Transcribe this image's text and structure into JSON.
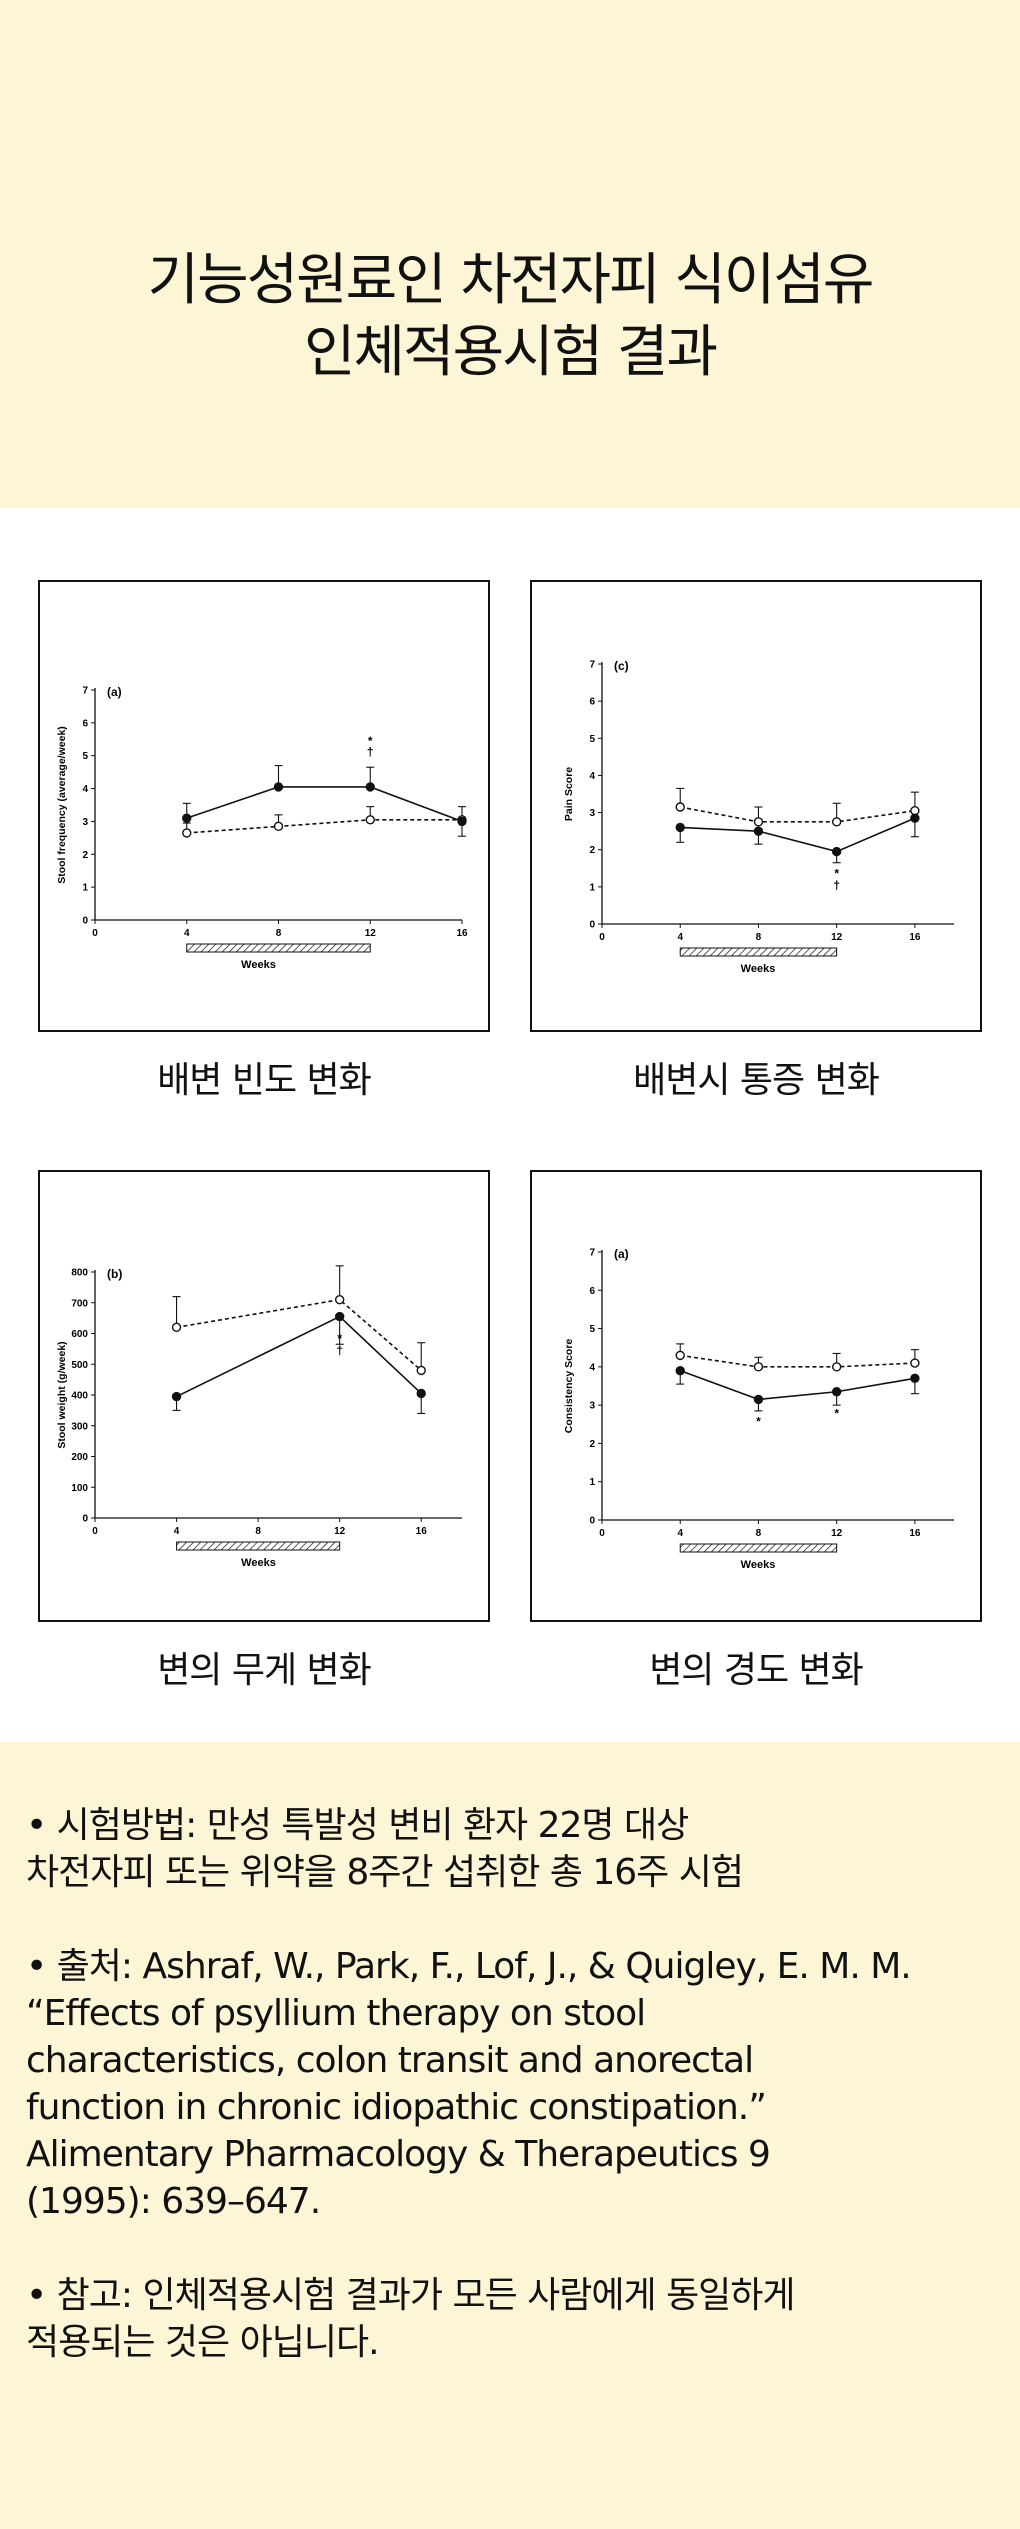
{
  "title": {
    "line1": "기능성원료인 차전자피 식이섬유",
    "line2": "인체적용시험 결과"
  },
  "charts": [
    {
      "caption": "배변 빈도 변화",
      "chart_data": {
        "type": "line",
        "panel_label": "(a)",
        "xlabel": "Weeks",
        "ylabel": "Stool frequency (average/week)",
        "x": [
          4,
          8,
          12,
          16
        ],
        "xlim": [
          0,
          16
        ],
        "xticks": [
          "0",
          "4",
          "8",
          "12",
          "16"
        ],
        "ylim": [
          0,
          7
        ],
        "yticks": [
          "0",
          "1",
          "2",
          "3",
          "4",
          "5",
          "6",
          "7"
        ],
        "series": [
          {
            "style": "solid-filled",
            "values": [
              3.1,
              4.05,
              4.05,
              3.0
            ],
            "err": [
              0.45,
              0.65,
              0.6,
              0.45
            ]
          },
          {
            "style": "dashed-open",
            "values": [
              2.65,
              2.85,
              3.05,
              3.05
            ],
            "err": [
              0.3,
              0.35,
              0.4,
              0.4
            ]
          }
        ],
        "annotations": [
          {
            "x": 12,
            "y": 4.65,
            "text": "*",
            "pos": "above"
          },
          {
            "x": 12,
            "y": 4.65,
            "text": "†",
            "pos": "above2"
          }
        ],
        "treatment_bar": [
          4,
          12
        ]
      }
    },
    {
      "caption": "배변시 통증 변화",
      "chart_data": {
        "type": "line",
        "panel_label": "(c)",
        "xlabel": "Weeks",
        "ylabel": "Pain Score",
        "x": [
          4,
          8,
          12,
          16
        ],
        "xlim": [
          0,
          18
        ],
        "xticks": [
          "0",
          "4",
          "8",
          "12",
          "16"
        ],
        "ylim": [
          0,
          7
        ],
        "yticks": [
          "0",
          "1",
          "2",
          "3",
          "4",
          "5",
          "6",
          "7"
        ],
        "series": [
          {
            "style": "solid-filled",
            "values": [
              2.6,
              2.5,
              1.95,
              2.85
            ],
            "err": [
              0.4,
              0.35,
              0.3,
              0.5
            ]
          },
          {
            "style": "dashed-open",
            "values": [
              3.15,
              2.75,
              2.75,
              3.05
            ],
            "err": [
              0.5,
              0.4,
              0.5,
              0.5
            ]
          }
        ],
        "annotations": [
          {
            "x": 12,
            "y": 1.95,
            "text": "*",
            "pos": "below"
          },
          {
            "x": 12,
            "y": 1.95,
            "text": "†",
            "pos": "below2"
          }
        ],
        "treatment_bar": [
          4,
          12
        ]
      }
    },
    {
      "caption": "변의 무게 변화",
      "chart_data": {
        "type": "line",
        "panel_label": "(b)",
        "xlabel": "Weeks",
        "ylabel": "Stool weight (g/week)",
        "x": [
          4,
          12,
          16
        ],
        "xlim": [
          0,
          18
        ],
        "xticks": [
          "0",
          "4",
          "8",
          "12",
          "16"
        ],
        "ylim": [
          0,
          800
        ],
        "yticks": [
          "0",
          "100",
          "200",
          "300",
          "400",
          "500",
          "600",
          "700",
          "800"
        ],
        "series": [
          {
            "style": "solid-filled",
            "values": [
              395,
              655,
              405
            ],
            "err": [
              45,
              90,
              65
            ]
          },
          {
            "style": "dashed-open",
            "values": [
              620,
              710,
              480
            ],
            "err": [
              100,
              110,
              90
            ]
          }
        ],
        "annotations": [
          {
            "x": 12,
            "y": 655,
            "text": "*",
            "pos": "below"
          },
          {
            "x": 12,
            "y": 655,
            "text": "†",
            "pos": "below2"
          }
        ],
        "treatment_bar": [
          4,
          12
        ]
      }
    },
    {
      "caption": "변의 경도 변화",
      "chart_data": {
        "type": "line",
        "panel_label": "(a)",
        "xlabel": "Weeks",
        "ylabel": "Consistency Score",
        "x": [
          4,
          8,
          12,
          16
        ],
        "xlim": [
          0,
          18
        ],
        "xticks": [
          "0",
          "4",
          "8",
          "12",
          "16"
        ],
        "ylim": [
          0,
          7
        ],
        "yticks": [
          "0",
          "1",
          "2",
          "3",
          "4",
          "5",
          "6",
          "7"
        ],
        "series": [
          {
            "style": "solid-filled",
            "values": [
              3.9,
              3.15,
              3.35,
              3.7
            ],
            "err": [
              0.35,
              0.3,
              0.35,
              0.4
            ]
          },
          {
            "style": "dashed-open",
            "values": [
              4.3,
              4.0,
              4.0,
              4.1
            ],
            "err": [
              0.3,
              0.25,
              0.35,
              0.35
            ]
          }
        ],
        "annotations": [
          {
            "x": 8,
            "y": 3.15,
            "text": "*",
            "pos": "below"
          },
          {
            "x": 12,
            "y": 3.35,
            "text": "*",
            "pos": "below"
          }
        ],
        "treatment_bar": [
          4,
          12
        ]
      }
    }
  ],
  "notes": {
    "method": [
      "• 시험방법: 만성 특발성 변비 환자 22명 대상",
      "차전자피 또는 위약을 8주간 섭취한 총 16주 시험"
    ],
    "source": [
      "• 출처: Ashraf, W., Park, F., Lof, J., & Quigley, E. M. M.",
      "“Effects of psyllium therapy on stool",
      "characteristics, colon transit and anorectal",
      "function in chronic idiopathic constipation.”",
      "Alimentary Pharmacology & Therapeutics 9",
      "(1995): 639–647."
    ],
    "reference": [
      "• 참고: 인체적용시험 결과가 모든 사람에게 동일하게",
      "적용되는 것은 아닙니다."
    ]
  }
}
